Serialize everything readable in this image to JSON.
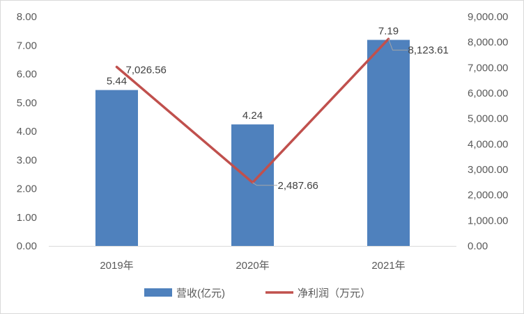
{
  "chart_data": {
    "type": "bar",
    "title": "",
    "categories": [
      "2019年",
      "2020年",
      "2021年"
    ],
    "series": [
      {
        "name": "营收(亿元)",
        "type": "bar",
        "axis": "left",
        "values": [
          5.44,
          4.24,
          7.19
        ],
        "labels": [
          "5.44",
          "4.24",
          "7.19"
        ],
        "color": "#4f81bd"
      },
      {
        "name": "净利润（万元）",
        "type": "line",
        "axis": "right",
        "values": [
          7026.56,
          2487.66,
          8123.61
        ],
        "labels": [
          "7,026.56",
          "2,487.66",
          "8,123.61"
        ],
        "color": "#c0504d"
      }
    ],
    "y_left": {
      "range": [
        0,
        8
      ],
      "ticks": [
        "0.00",
        "1.00",
        "2.00",
        "3.00",
        "4.00",
        "5.00",
        "6.00",
        "7.00",
        "8.00"
      ]
    },
    "y_right": {
      "range": [
        0,
        9000
      ],
      "ticks": [
        "0.00",
        "1,000.00",
        "2,000.00",
        "3,000.00",
        "4,000.00",
        "5,000.00",
        "6,000.00",
        "7,000.00",
        "8,000.00",
        "9,000.00"
      ]
    },
    "grid": false,
    "legend": "bottom"
  }
}
